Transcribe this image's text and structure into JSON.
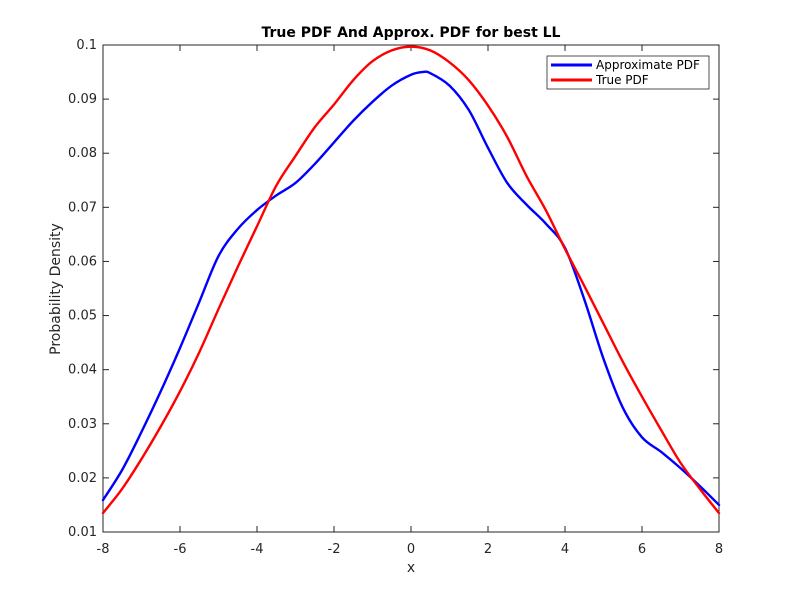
{
  "chart_data": {
    "type": "line",
    "title": "True PDF And Approx. PDF for best LL",
    "xlabel": "x",
    "ylabel": "Probability Density",
    "xlim": [
      -8,
      8
    ],
    "ylim": [
      0.01,
      0.1
    ],
    "xticks": [
      -8,
      -6,
      -4,
      -2,
      0,
      2,
      4,
      6,
      8
    ],
    "yticks": [
      0.01,
      0.02,
      0.03,
      0.04,
      0.05,
      0.06,
      0.07,
      0.08,
      0.09,
      0.1
    ],
    "xtick_labels": [
      "-8",
      "-6",
      "-4",
      "-2",
      "0",
      "2",
      "4",
      "6",
      "8"
    ],
    "ytick_labels": [
      "0.01",
      "0.02",
      "0.03",
      "0.04",
      "0.05",
      "0.06",
      "0.07",
      "0.08",
      "0.09",
      "0.1"
    ],
    "grid": false,
    "legend": {
      "placement": "top-right"
    },
    "series": [
      {
        "name": "Approximate PDF",
        "color": "#0000ff",
        "x": [
          -8,
          -7.5,
          -7,
          -6.5,
          -6,
          -5.5,
          -5,
          -4.5,
          -4,
          -3.5,
          -3,
          -2.5,
          -2,
          -1.5,
          -1,
          -0.5,
          0,
          0.3,
          0.5,
          1,
          1.5,
          2,
          2.5,
          3,
          3.5,
          4,
          4.5,
          5,
          5.5,
          6,
          6.5,
          7,
          7.5,
          8
        ],
        "y": [
          0.0159,
          0.0215,
          0.0285,
          0.036,
          0.044,
          0.0525,
          0.061,
          0.066,
          0.0695,
          0.0722,
          0.0745,
          0.078,
          0.082,
          0.086,
          0.0895,
          0.0925,
          0.0945,
          0.095,
          0.0948,
          0.0925,
          0.088,
          0.081,
          0.0745,
          0.0705,
          0.067,
          0.0625,
          0.053,
          0.042,
          0.033,
          0.0275,
          0.0248,
          0.0218,
          0.0185,
          0.015
        ]
      },
      {
        "name": "True PDF",
        "color": "#ff0000",
        "x": [
          -8,
          -7.5,
          -7,
          -6.5,
          -6,
          -5.5,
          -5,
          -4.5,
          -4,
          -3.5,
          -3,
          -2.5,
          -2,
          -1.5,
          -1,
          -0.5,
          0,
          0.5,
          1,
          1.5,
          2,
          2.5,
          3,
          3.5,
          4,
          4.5,
          5,
          5.5,
          6,
          6.5,
          7,
          7.5,
          8
        ],
        "y": [
          0.0135,
          0.018,
          0.0235,
          0.0295,
          0.036,
          0.0432,
          0.0512,
          0.059,
          0.0665,
          0.074,
          0.0795,
          0.0848,
          0.089,
          0.0935,
          0.097,
          0.099,
          0.0997,
          0.099,
          0.0968,
          0.0935,
          0.0888,
          0.083,
          0.0758,
          0.0695,
          0.0623,
          0.0555,
          0.0485,
          0.0415,
          0.035,
          0.0288,
          0.0228,
          0.018,
          0.0135
        ]
      }
    ]
  }
}
